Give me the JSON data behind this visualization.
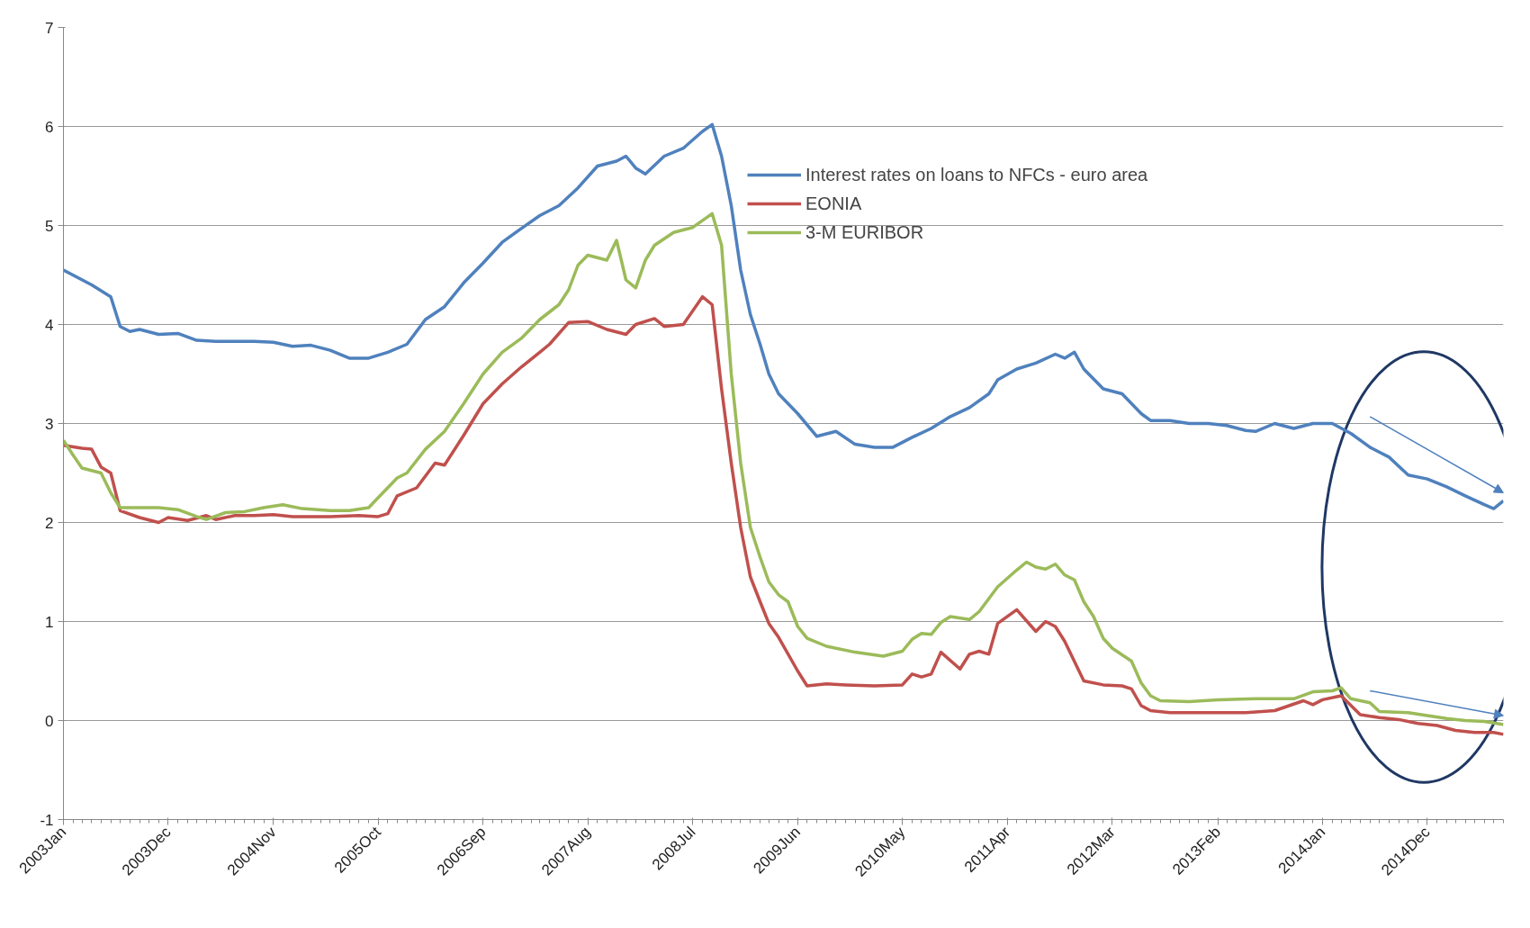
{
  "chart_data": {
    "type": "line",
    "xlim": [
      "2003-01",
      "2015-08"
    ],
    "xticks": [
      {
        "value": "2003-01",
        "label": "2003Jan"
      },
      {
        "value": "2003-12",
        "label": "2003Dec"
      },
      {
        "value": "2004-11",
        "label": "2004Nov"
      },
      {
        "value": "2005-10",
        "label": "2005Oct"
      },
      {
        "value": "2006-09",
        "label": "2006Sep"
      },
      {
        "value": "2007-08",
        "label": "2007Aug"
      },
      {
        "value": "2008-07",
        "label": "2008Jul"
      },
      {
        "value": "2009-06",
        "label": "2009Jun"
      },
      {
        "value": "2010-05",
        "label": "2010May"
      },
      {
        "value": "2011-04",
        "label": "2011Apr"
      },
      {
        "value": "2012-03",
        "label": "2012Mar"
      },
      {
        "value": "2013-02",
        "label": "2013Feb"
      },
      {
        "value": "2014-01",
        "label": "2014Jan"
      },
      {
        "value": "2014-12",
        "label": "2014Dec"
      }
    ],
    "ylim": [
      -1,
      7
    ],
    "yticks": [
      -1,
      0,
      1,
      2,
      3,
      4,
      5,
      6,
      7
    ],
    "grid": "y",
    "legend": "top right",
    "line_style": "solid",
    "series": [
      {
        "name": "Interest rates on loans to NFCs - euro area",
        "color": "#4f81bd",
        "x": [
          "2003-01",
          "2003-04",
          "2003-06",
          "2003-07",
          "2003-08",
          "2003-09",
          "2003-11",
          "2004-01",
          "2004-03",
          "2004-05",
          "2004-07",
          "2004-09",
          "2004-11",
          "2005-01",
          "2005-03",
          "2005-05",
          "2005-07",
          "2005-09",
          "2005-11",
          "2006-01",
          "2006-03",
          "2006-05",
          "2006-07",
          "2006-09",
          "2006-11",
          "2007-01",
          "2007-03",
          "2007-05",
          "2007-07",
          "2007-09",
          "2007-11",
          "2007-12",
          "2008-01",
          "2008-02",
          "2008-04",
          "2008-06",
          "2008-08",
          "2008-09",
          "2008-10",
          "2008-11",
          "2008-12",
          "2009-01",
          "2009-02",
          "2009-03",
          "2009-04",
          "2009-06",
          "2009-08",
          "2009-10",
          "2009-12",
          "2010-02",
          "2010-04",
          "2010-06",
          "2010-08",
          "2010-10",
          "2010-12",
          "2011-02",
          "2011-03",
          "2011-05",
          "2011-07",
          "2011-09",
          "2011-10",
          "2011-11",
          "2011-12",
          "2012-02",
          "2012-04",
          "2012-06",
          "2012-07",
          "2012-09",
          "2012-11",
          "2013-01",
          "2013-03",
          "2013-05",
          "2013-06",
          "2013-08",
          "2013-10",
          "2013-12",
          "2014-02",
          "2014-04",
          "2014-06",
          "2014-08",
          "2014-10",
          "2014-12",
          "2015-02",
          "2015-04",
          "2015-06",
          "2015-07",
          "2015-08"
        ],
        "values": [
          4.55,
          4.4,
          4.28,
          3.98,
          3.93,
          3.95,
          3.9,
          3.91,
          3.84,
          3.83,
          3.83,
          3.83,
          3.82,
          3.78,
          3.79,
          3.74,
          3.66,
          3.66,
          3.72,
          3.8,
          4.05,
          4.18,
          4.42,
          4.62,
          4.83,
          4.97,
          5.1,
          5.2,
          5.38,
          5.6,
          5.65,
          5.7,
          5.58,
          5.52,
          5.7,
          5.78,
          5.95,
          6.02,
          5.7,
          5.2,
          4.55,
          4.1,
          3.8,
          3.5,
          3.3,
          3.1,
          2.87,
          2.92,
          2.79,
          2.76,
          2.76,
          2.86,
          2.95,
          3.07,
          3.16,
          3.3,
          3.44,
          3.55,
          3.61,
          3.7,
          3.66,
          3.72,
          3.55,
          3.35,
          3.3,
          3.1,
          3.03,
          3.03,
          3.0,
          3.0,
          2.98,
          2.93,
          2.92,
          3.0,
          2.95,
          3.0,
          3.0,
          2.9,
          2.76,
          2.66,
          2.48,
          2.44,
          2.36,
          2.27,
          2.18,
          2.14,
          2.22
        ]
      },
      {
        "name": "EONIA",
        "color": "#c0504d",
        "x": [
          "2003-01",
          "2003-03",
          "2003-04",
          "2003-05",
          "2003-06",
          "2003-07",
          "2003-09",
          "2003-11",
          "2003-12",
          "2004-02",
          "2004-04",
          "2004-05",
          "2004-07",
          "2004-09",
          "2004-11",
          "2005-01",
          "2005-05",
          "2005-08",
          "2005-10",
          "2005-11",
          "2005-12",
          "2006-02",
          "2006-04",
          "2006-05",
          "2006-07",
          "2006-09",
          "2006-11",
          "2007-01",
          "2007-03",
          "2007-04",
          "2007-06",
          "2007-08",
          "2007-10",
          "2007-12",
          "2008-01",
          "2008-03",
          "2008-04",
          "2008-06",
          "2008-08",
          "2008-09",
          "2008-10",
          "2008-11",
          "2008-12",
          "2009-01",
          "2009-02",
          "2009-03",
          "2009-04",
          "2009-06",
          "2009-07",
          "2009-09",
          "2009-11",
          "2010-02",
          "2010-05",
          "2010-06",
          "2010-07",
          "2010-08",
          "2010-09",
          "2010-11",
          "2010-12",
          "2011-01",
          "2011-02",
          "2011-03",
          "2011-05",
          "2011-07",
          "2011-08",
          "2011-09",
          "2011-10",
          "2011-12",
          "2012-02",
          "2012-04",
          "2012-05",
          "2012-06",
          "2012-07",
          "2012-09",
          "2013-01",
          "2013-05",
          "2013-08",
          "2013-11",
          "2013-12",
          "2014-01",
          "2014-03",
          "2014-05",
          "2014-07",
          "2014-09",
          "2014-11",
          "2015-01",
          "2015-03",
          "2015-05",
          "2015-07",
          "2015-08"
        ],
        "values": [
          2.78,
          2.75,
          2.74,
          2.56,
          2.5,
          2.12,
          2.05,
          2.0,
          2.05,
          2.02,
          2.07,
          2.03,
          2.07,
          2.07,
          2.08,
          2.06,
          2.06,
          2.07,
          2.06,
          2.09,
          2.27,
          2.35,
          2.6,
          2.58,
          2.88,
          3.2,
          3.4,
          3.57,
          3.72,
          3.8,
          4.02,
          4.03,
          3.95,
          3.9,
          4.0,
          4.06,
          3.98,
          4.0,
          4.28,
          4.2,
          3.35,
          2.6,
          1.95,
          1.45,
          1.2,
          0.98,
          0.84,
          0.5,
          0.35,
          0.37,
          0.36,
          0.35,
          0.36,
          0.47,
          0.44,
          0.47,
          0.69,
          0.52,
          0.67,
          0.7,
          0.67,
          0.98,
          1.12,
          0.9,
          1.0,
          0.95,
          0.8,
          0.4,
          0.36,
          0.35,
          0.32,
          0.15,
          0.1,
          0.08,
          0.08,
          0.08,
          0.1,
          0.2,
          0.16,
          0.21,
          0.25,
          0.06,
          0.03,
          0.01,
          -0.03,
          -0.05,
          -0.1,
          -0.12,
          -0.12,
          -0.14
        ]
      },
      {
        "name": "3-M EURIBOR",
        "color": "#9bbb59",
        "x": [
          "2003-01",
          "2003-02",
          "2003-03",
          "2003-05",
          "2003-06",
          "2003-07",
          "2003-09",
          "2003-11",
          "2004-01",
          "2004-03",
          "2004-04",
          "2004-06",
          "2004-08",
          "2004-10",
          "2004-12",
          "2005-02",
          "2005-05",
          "2005-07",
          "2005-09",
          "2005-10",
          "2005-12",
          "2006-01",
          "2006-03",
          "2006-05",
          "2006-07",
          "2006-09",
          "2006-11",
          "2007-01",
          "2007-03",
          "2007-05",
          "2007-06",
          "2007-07",
          "2007-08",
          "2007-10",
          "2007-11",
          "2007-12",
          "2008-01",
          "2008-02",
          "2008-03",
          "2008-05",
          "2008-07",
          "2008-09",
          "2008-10",
          "2008-11",
          "2008-12",
          "2009-01",
          "2009-02",
          "2009-03",
          "2009-04",
          "2009-05",
          "2009-06",
          "2009-07",
          "2009-09",
          "2009-12",
          "2010-03",
          "2010-05",
          "2010-06",
          "2010-07",
          "2010-08",
          "2010-09",
          "2010-10",
          "2010-12",
          "2011-01",
          "2011-03",
          "2011-05",
          "2011-06",
          "2011-07",
          "2011-08",
          "2011-09",
          "2011-10",
          "2011-11",
          "2011-12",
          "2012-01",
          "2012-02",
          "2012-03",
          "2012-05",
          "2012-06",
          "2012-07",
          "2012-08",
          "2012-11",
          "2013-02",
          "2013-06",
          "2013-10",
          "2013-12",
          "2014-02",
          "2014-03",
          "2014-04",
          "2014-06",
          "2014-07",
          "2014-10",
          "2014-12",
          "2015-02",
          "2015-04",
          "2015-06",
          "2015-08"
        ],
        "values": [
          2.83,
          2.68,
          2.55,
          2.5,
          2.3,
          2.15,
          2.15,
          2.15,
          2.13,
          2.06,
          2.03,
          2.1,
          2.11,
          2.15,
          2.18,
          2.14,
          2.12,
          2.12,
          2.15,
          2.25,
          2.45,
          2.5,
          2.74,
          2.92,
          3.2,
          3.5,
          3.72,
          3.86,
          4.05,
          4.2,
          4.35,
          4.6,
          4.7,
          4.65,
          4.85,
          4.45,
          4.37,
          4.65,
          4.8,
          4.93,
          4.98,
          5.12,
          4.8,
          3.5,
          2.6,
          1.95,
          1.65,
          1.4,
          1.27,
          1.2,
          0.95,
          0.83,
          0.75,
          0.69,
          0.65,
          0.7,
          0.82,
          0.88,
          0.87,
          0.99,
          1.05,
          1.02,
          1.1,
          1.35,
          1.52,
          1.6,
          1.55,
          1.53,
          1.58,
          1.47,
          1.42,
          1.2,
          1.05,
          0.83,
          0.73,
          0.6,
          0.38,
          0.25,
          0.2,
          0.19,
          0.21,
          0.22,
          0.22,
          0.29,
          0.3,
          0.33,
          0.22,
          0.18,
          0.09,
          0.08,
          0.05,
          0.02,
          0.0,
          -0.01,
          -0.04
        ]
      }
    ]
  }
}
